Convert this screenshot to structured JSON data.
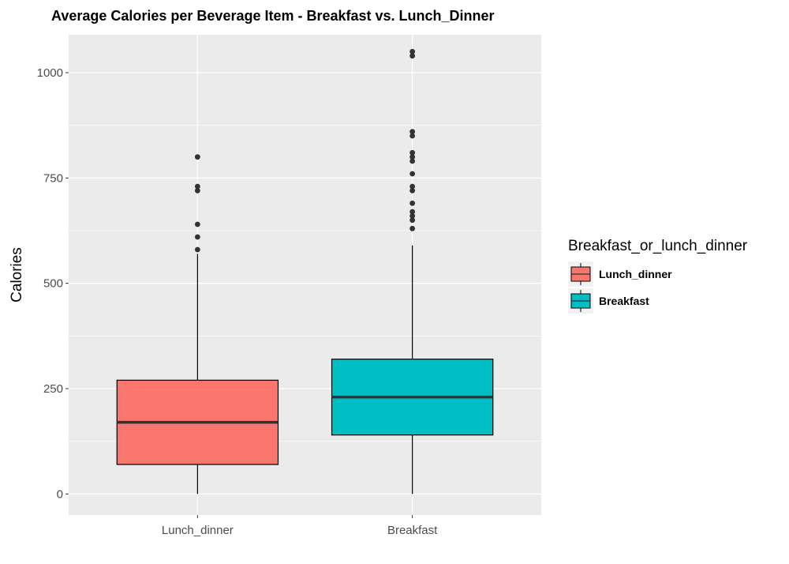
{
  "chart_data": {
    "type": "boxplot",
    "title": "Average Calories per Beverage Item - Breakfast vs. Lunch_Dinner",
    "xlabel": "",
    "ylabel": "Calories",
    "ylim": [
      -50,
      1090
    ],
    "y_ticks": [
      0,
      250,
      500,
      750,
      1000
    ],
    "y_tick_labels": [
      "0",
      "250",
      "500",
      "750",
      "1000"
    ],
    "categories": [
      "Lunch_dinner",
      "Breakfast"
    ],
    "legend": {
      "title": "Breakfast_or_lunch_dinner",
      "position": "right",
      "entries": [
        "Lunch_dinner",
        "Breakfast"
      ]
    },
    "grid": true,
    "panel_background": "#ebebeb",
    "series": [
      {
        "name": "Lunch_dinner",
        "color": "#f8766d",
        "whisker_low": 0,
        "q1": 70,
        "median": 170,
        "q3": 270,
        "whisker_high": 570,
        "outliers": [
          580,
          610,
          640,
          720,
          730,
          800
        ]
      },
      {
        "name": "Breakfast",
        "color": "#00bfc4",
        "whisker_low": 0,
        "q1": 140,
        "median": 230,
        "q3": 320,
        "whisker_high": 590,
        "outliers": [
          630,
          650,
          660,
          670,
          690,
          720,
          730,
          760,
          790,
          800,
          810,
          850,
          860,
          1040,
          1050
        ]
      }
    ]
  }
}
